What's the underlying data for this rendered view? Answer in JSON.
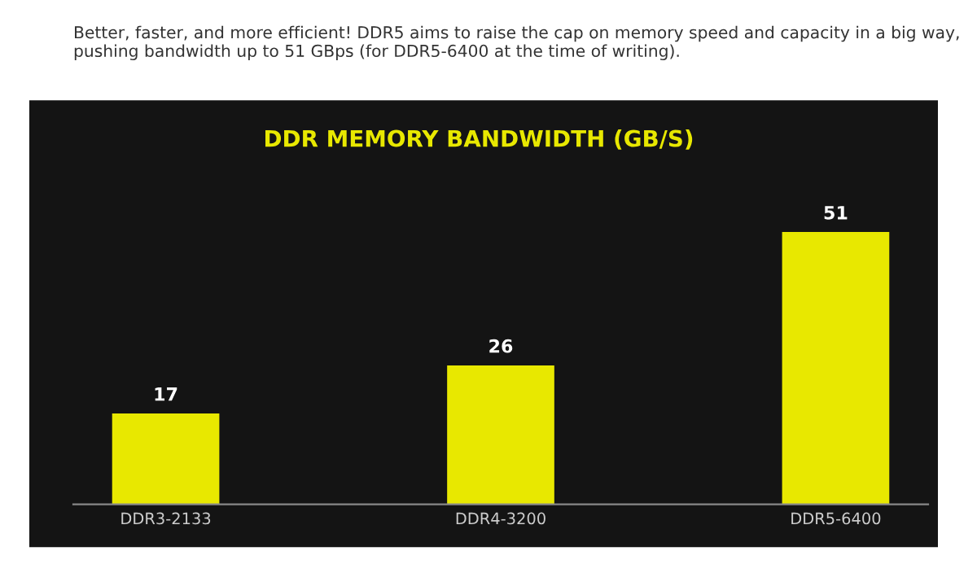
{
  "chart_data": {
    "type": "bar",
    "title": "DDR MEMORY BANDWIDTH (GB/S)",
    "annotations": [
      "Better, faster, and more efficient! DDR5 aims to raise the cap on memory speed and capacity in a big way, pushing bandwidth up to 51 GBps (for DDR5-6400 at the time of writing)."
    ],
    "categories": [
      "DDR3-2133",
      "DDR4-3200",
      "DDR5-6400"
    ],
    "values": [
      17,
      26,
      51
    ],
    "color": "#e8e800",
    "data_labels": true,
    "grid": false,
    "legend": false
  }
}
